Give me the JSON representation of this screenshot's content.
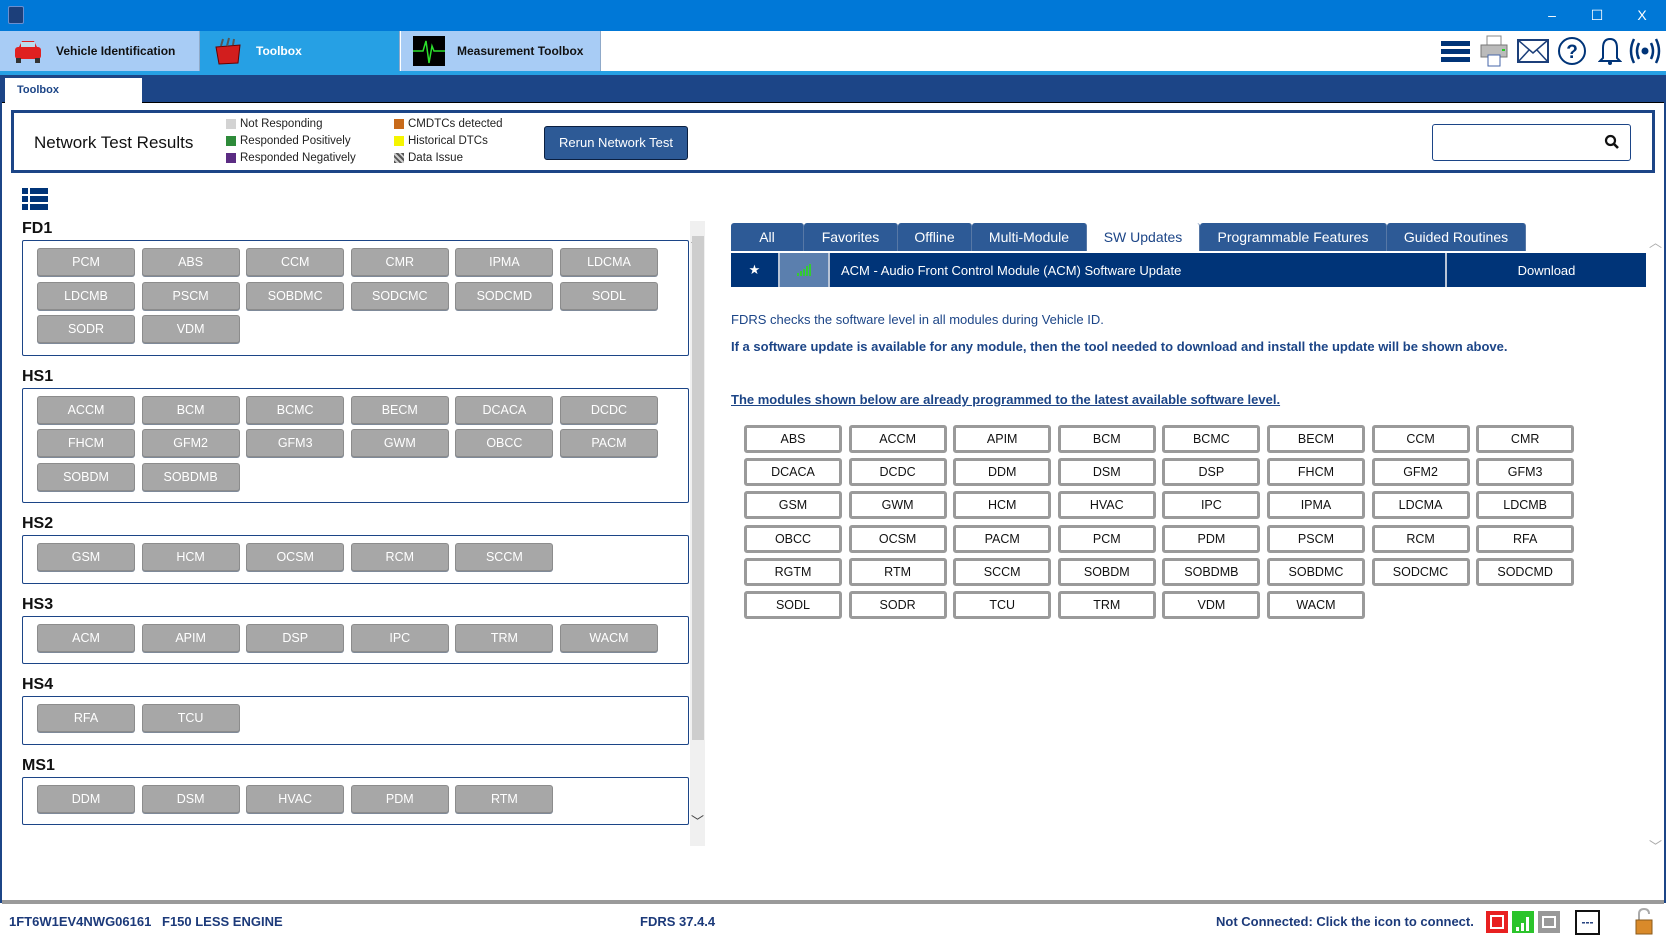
{
  "window": {
    "minimize": "–",
    "maximize": "☐",
    "close": "X"
  },
  "main_tabs": [
    {
      "label": "Vehicle Identification",
      "icon": "car-icon",
      "active": false
    },
    {
      "label": "Toolbox",
      "icon": "toolbox-icon",
      "active": true
    },
    {
      "label": "Measurement Toolbox",
      "icon": "oscilloscope-icon",
      "active": false
    }
  ],
  "toolbar_icons": [
    "menu-icon",
    "printer-icon",
    "mail-icon",
    "help-icon",
    "bell-icon",
    "wireless-icon"
  ],
  "sub_tab": "Toolbox",
  "network": {
    "title": "Network Test Results",
    "legend": [
      {
        "label": "Not Responding",
        "color": "#d3d3d3"
      },
      {
        "label": "Responded Positively",
        "color": "#2e8b3a"
      },
      {
        "label": "Responded Negatively",
        "color": "#5b2c83"
      },
      {
        "label": "CMDTCs detected",
        "color": "#c86a1a"
      },
      {
        "label": "Historical DTCs",
        "color": "#f5f500"
      },
      {
        "label": "Data Issue",
        "color": "#888888"
      }
    ],
    "rerun_label": "Rerun Network Test",
    "search_value": ""
  },
  "networks": [
    {
      "name": "FD1",
      "modules": [
        "PCM",
        "ABS",
        "CCM",
        "CMR",
        "IPMA",
        "LDCMA",
        "LDCMB",
        "PSCM",
        "SOBDMC",
        "SODCMC",
        "SODCMD",
        "SODL",
        "SODR",
        "VDM"
      ]
    },
    {
      "name": "HS1",
      "modules": [
        "ACCM",
        "BCM",
        "BCMC",
        "BECM",
        "DCACA",
        "DCDC",
        "FHCM",
        "GFM2",
        "GFM3",
        "GWM",
        "OBCC",
        "PACM",
        "SOBDM",
        "SOBDMB"
      ]
    },
    {
      "name": "HS2",
      "modules": [
        "GSM",
        "HCM",
        "OCSM",
        "RCM",
        "SCCM"
      ]
    },
    {
      "name": "HS3",
      "modules": [
        "ACM",
        "APIM",
        "DSP",
        "IPC",
        "TRM",
        "WACM"
      ]
    },
    {
      "name": "HS4",
      "modules": [
        "RFA",
        "TCU"
      ]
    },
    {
      "name": "MS1",
      "modules": [
        "DDM",
        "DSM",
        "HVAC",
        "PDM",
        "RTM"
      ]
    }
  ],
  "right_tabs": [
    {
      "label": "All",
      "active": false
    },
    {
      "label": "Favorites",
      "active": false
    },
    {
      "label": "Offline",
      "active": false
    },
    {
      "label": "Multi-Module",
      "active": false
    },
    {
      "label": "SW Updates",
      "active": true
    },
    {
      "label": "Programmable Features",
      "active": false
    },
    {
      "label": "Guided Routines",
      "active": false
    }
  ],
  "sw_update": {
    "title": "ACM - Audio Front Control Module (ACM) Software Update",
    "action": "Download"
  },
  "info": {
    "line1": "FDRS checks the software level in all modules during Vehicle ID.",
    "line2": "If a software update is available for any module, then the tool needed to download and install the update will be shown above.",
    "line3": "The modules shown below are already programmed to the latest available software level."
  },
  "latest_modules": [
    "ABS",
    "ACCM",
    "APIM",
    "BCM",
    "BCMC",
    "BECM",
    "CCM",
    "CMR",
    "DCACA",
    "DCDC",
    "DDM",
    "DSM",
    "DSP",
    "FHCM",
    "GFM2",
    "GFM3",
    "GSM",
    "GWM",
    "HCM",
    "HVAC",
    "IPC",
    "IPMA",
    "LDCMA",
    "LDCMB",
    "OBCC",
    "OCSM",
    "PACM",
    "PCM",
    "PDM",
    "PSCM",
    "RCM",
    "RFA",
    "RGTM",
    "RTM",
    "SCCM",
    "SOBDM",
    "SOBDMB",
    "SOBDMC",
    "SODCMC",
    "SODCMD",
    "SODL",
    "SODR",
    "TCU",
    "TRM",
    "VDM",
    "WACM"
  ],
  "status": {
    "vin": "1FT6W1EV4NWG06161",
    "vehicle": "F150 LESS ENGINE",
    "version": "FDRS 37.4.4",
    "connection": "Not Connected: Click the icon to connect.",
    "dash": "---"
  }
}
